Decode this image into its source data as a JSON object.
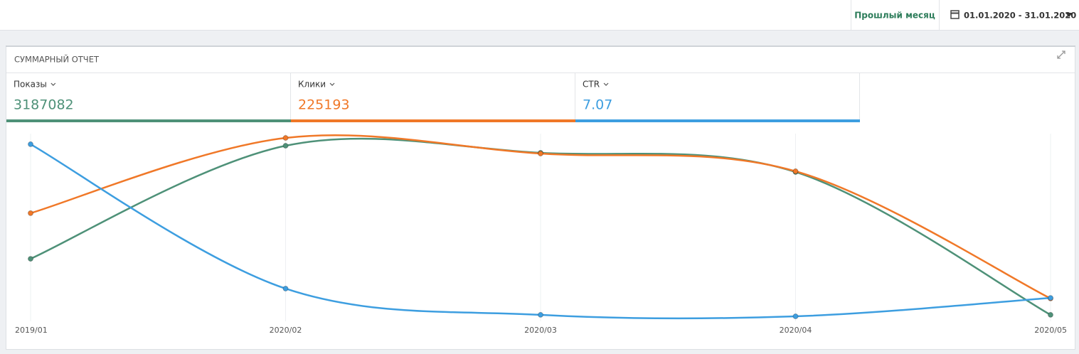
{
  "header": {
    "period_button": "Прошлый месяц",
    "date_range": "01.01.2020 - 31.01.2020"
  },
  "panel": {
    "title": "СУММАРНЫЙ ОТЧЕТ"
  },
  "chart_data": {
    "type": "line",
    "categories": [
      "2019/01",
      "2020/02",
      "2020/03",
      "2020/04",
      "2020/05"
    ],
    "ylim": [
      0,
      100
    ],
    "grid": true,
    "series": [
      {
        "name": "Показы",
        "total": 3187082,
        "color": "#4e9178",
        "values": [
          32.8,
          93.5,
          89.7,
          79.4,
          2.7
        ]
      },
      {
        "name": "Клики",
        "total": 225193,
        "color": "#f07828",
        "values": [
          57.3,
          97.7,
          89.3,
          79.8,
          11.5
        ]
      },
      {
        "name": "CTR",
        "total": 7.07,
        "color": "#3d9ee0",
        "values": [
          94.3,
          16.8,
          2.7,
          1.9,
          11.8
        ]
      }
    ]
  }
}
